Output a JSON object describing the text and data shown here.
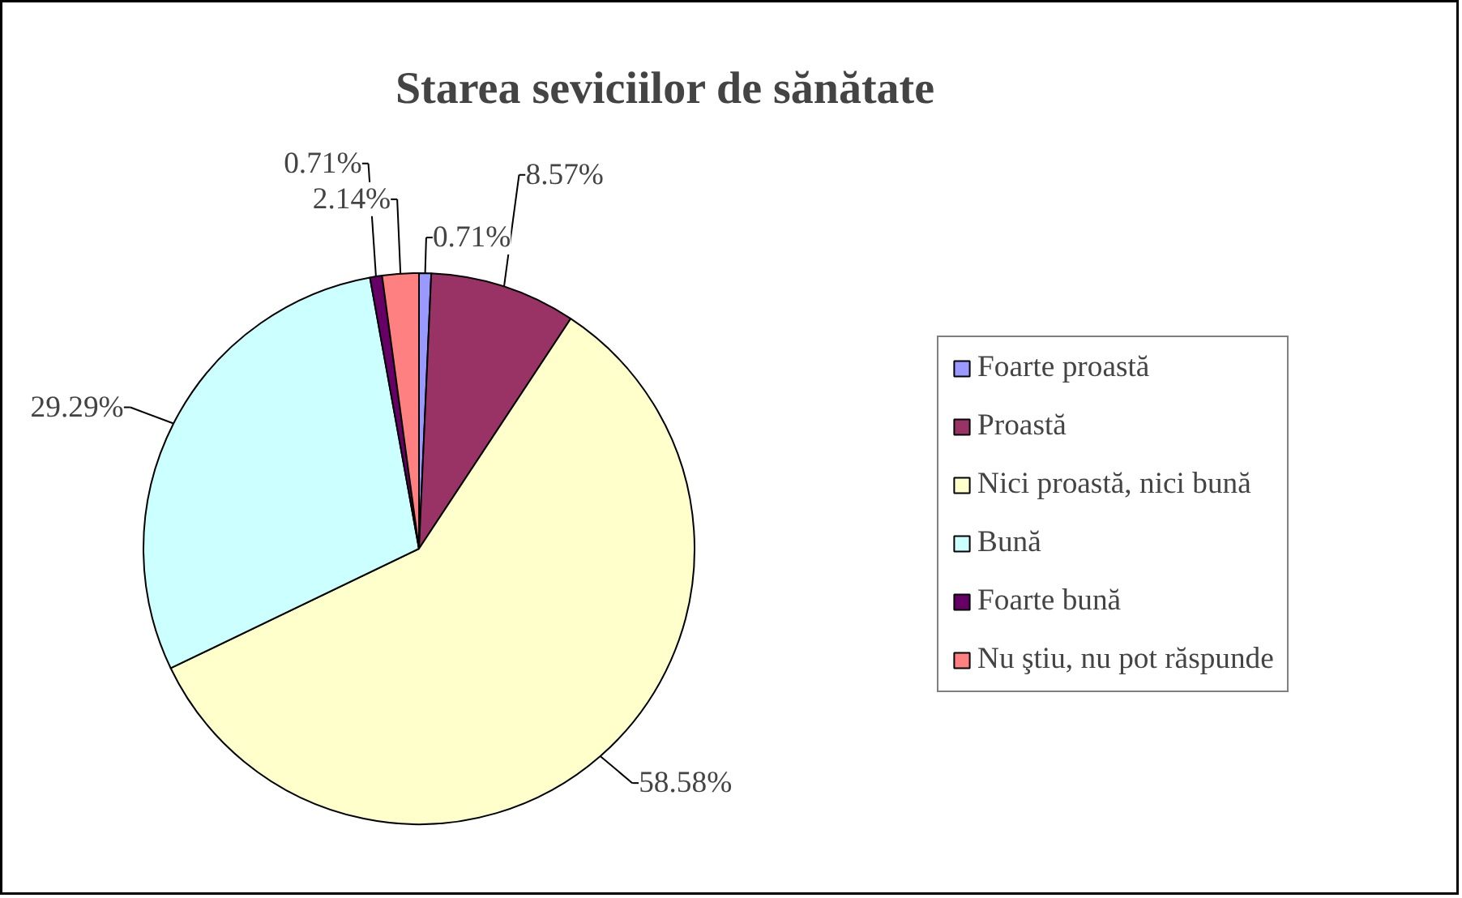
{
  "chart_data": {
    "type": "pie",
    "title": "Starea seviciilor de sănătate",
    "categories": [
      "Foarte proastă",
      "Proastă",
      "Nici proastă, nici bună",
      "Bună",
      "Foarte bună",
      "Nu ştiu, nu pot răspunde"
    ],
    "values": [
      0.71,
      8.57,
      58.58,
      29.29,
      0.71,
      2.14
    ],
    "colors": [
      "#9999ff",
      "#993366",
      "#ffffcc",
      "#ccffff",
      "#660066",
      "#ff8080"
    ],
    "value_labels": [
      "0.71%",
      "8.57%",
      "58.58%",
      "29.29%",
      "0.71%",
      "2.14%"
    ],
    "legend": "right"
  }
}
